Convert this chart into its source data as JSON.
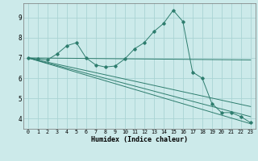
{
  "xlabel": "Humidex (Indice chaleur)",
  "background_color": "#cceaea",
  "grid_color": "#aad4d4",
  "line_color": "#2e7d6e",
  "xlim": [
    -0.5,
    23.5
  ],
  "ylim": [
    3.5,
    9.7
  ],
  "yticks": [
    4,
    5,
    6,
    7,
    8,
    9
  ],
  "xticks": [
    0,
    1,
    2,
    3,
    4,
    5,
    6,
    7,
    8,
    9,
    10,
    11,
    12,
    13,
    14,
    15,
    16,
    17,
    18,
    19,
    20,
    21,
    22,
    23
  ],
  "series_main": [
    [
      0,
      7.0
    ],
    [
      1,
      6.95
    ],
    [
      2,
      6.9
    ],
    [
      3,
      7.2
    ],
    [
      4,
      7.6
    ],
    [
      5,
      7.75
    ],
    [
      6,
      7.0
    ],
    [
      7,
      6.65
    ],
    [
      8,
      6.55
    ],
    [
      9,
      6.6
    ],
    [
      10,
      6.95
    ],
    [
      11,
      7.45
    ],
    [
      12,
      7.75
    ],
    [
      13,
      8.3
    ],
    [
      14,
      8.7
    ],
    [
      15,
      9.35
    ],
    [
      16,
      8.8
    ],
    [
      17,
      6.3
    ],
    [
      18,
      6.0
    ],
    [
      19,
      4.75
    ],
    [
      20,
      4.3
    ],
    [
      21,
      4.3
    ],
    [
      22,
      4.1
    ],
    [
      23,
      3.8
    ]
  ],
  "line_straight1": [
    [
      0,
      7.0
    ],
    [
      23,
      6.9
    ]
  ],
  "line_straight2": [
    [
      0,
      7.0
    ],
    [
      23,
      4.6
    ]
  ],
  "line_straight3": [
    [
      0,
      7.0
    ],
    [
      23,
      4.1
    ]
  ],
  "line_straight4": [
    [
      0,
      7.0
    ],
    [
      23,
      3.75
    ]
  ]
}
